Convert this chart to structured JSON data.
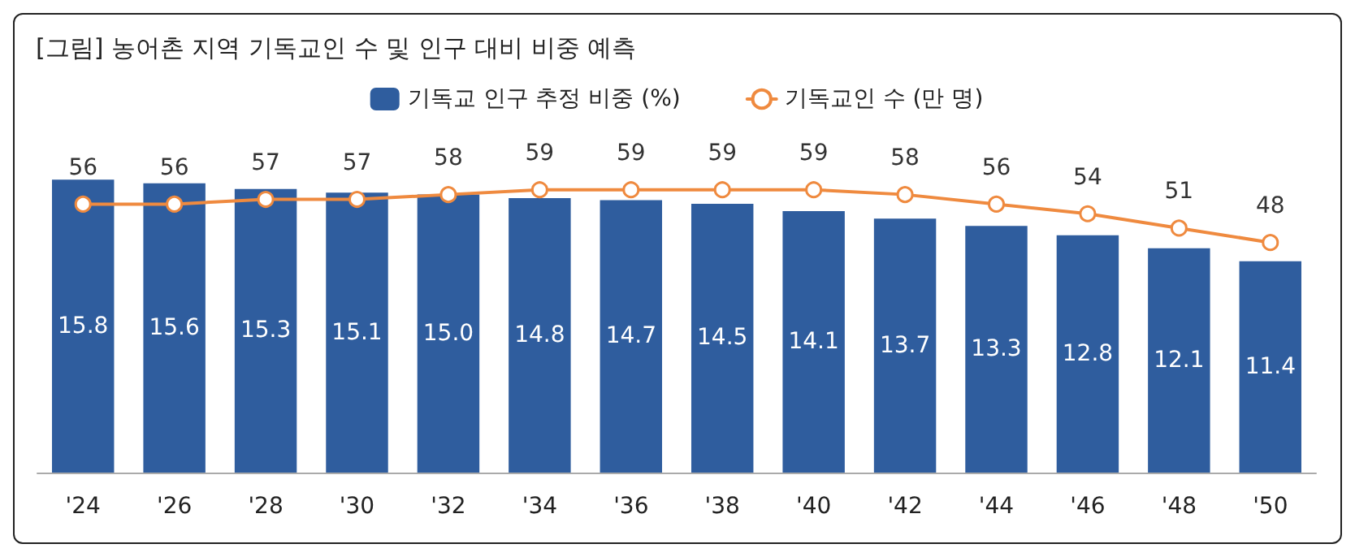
{
  "chart_data": {
    "type": "bar",
    "title": "[그림] 농어촌 지역 기독교인 수 및 인구 대비 비중 예측",
    "categories": [
      "'24",
      "'26",
      "'28",
      "'30",
      "'32",
      "'34",
      "'36",
      "'38",
      "'40",
      "'42",
      "'44",
      "'46",
      "'48",
      "'50"
    ],
    "series": [
      {
        "name": "기독교 인구 추정 비중 (%)",
        "color": "#2f5d9e",
        "values": [
          15.8,
          15.6,
          15.3,
          15.1,
          15.0,
          14.8,
          14.7,
          14.5,
          14.1,
          13.7,
          13.3,
          12.8,
          12.1,
          11.4
        ],
        "value_labels": [
          "15.8",
          "15.6",
          "15.3",
          "15.1",
          "15.0",
          "14.8",
          "14.7",
          "14.5",
          "14.1",
          "13.7",
          "13.3",
          "12.8",
          "12.1",
          "11.4"
        ]
      },
      {
        "name": "기독교인 수 (만 명)",
        "type": "line",
        "axis": "y2",
        "color": "#ef8a3f",
        "values": [
          56,
          56,
          57,
          57,
          58,
          59,
          59,
          59,
          59,
          58,
          56,
          54,
          51,
          48
        ],
        "value_labels": [
          "56",
          "56",
          "57",
          "57",
          "58",
          "59",
          "59",
          "59",
          "59",
          "58",
          "56",
          "54",
          "51",
          "48"
        ]
      }
    ],
    "legend": "top",
    "grid": false,
    "tick_labels": "x",
    "marker": "circle",
    "line_style": "solid"
  }
}
